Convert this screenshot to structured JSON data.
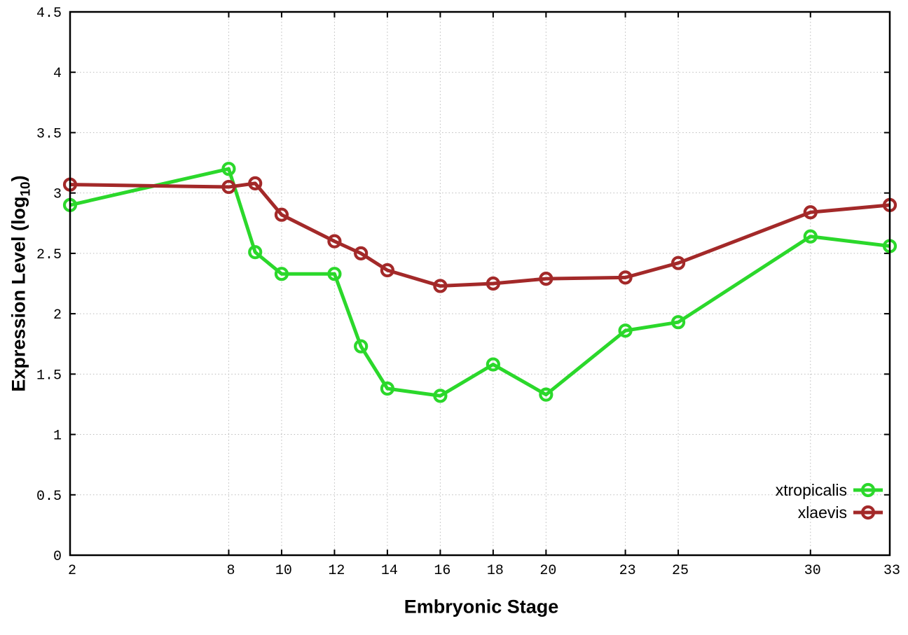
{
  "chart_data": {
    "type": "line",
    "title": "",
    "xlabel": "Embryonic Stage",
    "ylabel": "Expression Level (log10)",
    "ylabel_parts": {
      "main": "Expression Level (log",
      "sub": "10",
      "end": ")"
    },
    "xlim": [
      2,
      33
    ],
    "ylim": [
      0,
      4.5
    ],
    "grid": true,
    "legend_position": "bottom-right",
    "xticks": [
      2,
      8,
      10,
      12,
      14,
      16,
      18,
      20,
      23,
      25,
      30,
      33
    ],
    "xtick_labels": [
      "2",
      "8",
      "10",
      "12",
      "14",
      "16",
      "18",
      "20",
      "23",
      "25",
      "30",
      "33"
    ],
    "yticks": [
      0,
      0.5,
      1,
      1.5,
      2,
      2.5,
      3,
      3.5,
      4,
      4.5
    ],
    "ytick_labels": [
      "0",
      "0.5",
      "1",
      "1.5",
      "2",
      "2.5",
      "3",
      "3.5",
      "4",
      "4.5"
    ],
    "x": [
      2,
      8,
      9,
      10,
      12,
      13,
      14,
      16,
      18,
      20,
      23,
      25,
      30,
      33
    ],
    "series": [
      {
        "name": "xtropicalis",
        "color": "#2bd82b",
        "values": [
          2.9,
          3.2,
          2.51,
          2.33,
          2.33,
          1.73,
          1.38,
          1.32,
          1.58,
          1.33,
          1.86,
          1.93,
          2.64,
          2.56
        ]
      },
      {
        "name": "xlaevis",
        "color": "#a32929",
        "values": [
          3.07,
          3.05,
          3.08,
          2.82,
          2.6,
          2.5,
          2.36,
          2.23,
          2.25,
          2.29,
          2.3,
          2.42,
          2.84,
          2.9
        ]
      }
    ],
    "style": {
      "grid_color": "#bbbbbb",
      "border_color": "#000000",
      "background": "#ffffff",
      "marker": "open-circle"
    }
  }
}
